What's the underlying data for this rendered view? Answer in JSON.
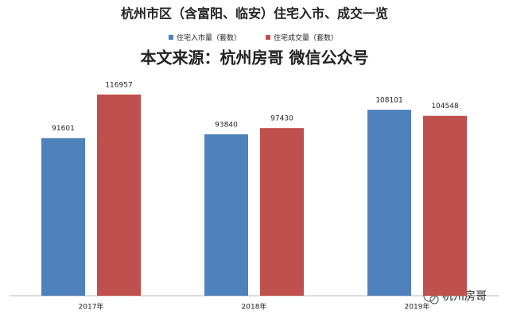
{
  "chart_data": {
    "type": "bar",
    "title": "杭州市区（含富阳、临安）住宅入市、成交一览",
    "subtitle": "本文来源：杭州房哥 微信公众号",
    "watermark": "杭州房哥",
    "categories": [
      "2017年",
      "2018年",
      "2019年"
    ],
    "series": [
      {
        "name": "住宅入市量（套数）",
        "color": "#4f81bd",
        "values": [
          91601,
          93840,
          108101
        ]
      },
      {
        "name": "住宅成交量（套数）",
        "color": "#c0504d",
        "values": [
          116957,
          97430,
          104548
        ]
      }
    ],
    "ylim": [
      0,
      140000
    ]
  }
}
